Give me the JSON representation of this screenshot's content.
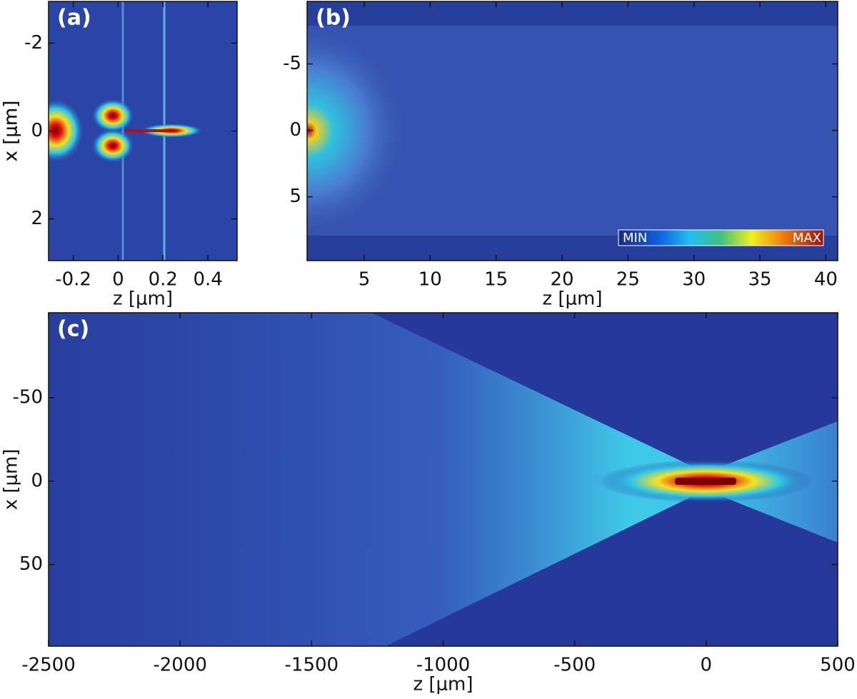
{
  "chart_data": [
    {
      "type": "heatmap",
      "label": "(a)",
      "xlabel": "z [μm]",
      "ylabel": "x [μm]",
      "xlim": [
        -0.31,
        0.53
      ],
      "xticks": [
        -0.2,
        0,
        0.2,
        0.4
      ],
      "ylim": [
        2.95,
        -2.95
      ],
      "yticks": [
        -2,
        0,
        2
      ]
    },
    {
      "type": "heatmap",
      "label": "(b)",
      "xlabel": "z [μm]",
      "ylabel": "x [μm]",
      "xlim": [
        0.67,
        40.9
      ],
      "xticks": [
        5,
        10,
        15,
        20,
        25,
        30,
        35,
        40
      ],
      "ylim": [
        9.8,
        -9.7
      ],
      "yticks": [
        -5,
        0,
        5
      ],
      "colorbar_labels": [
        "MIN",
        "MAX"
      ]
    },
    {
      "type": "heatmap",
      "label": "(c)",
      "xlabel": "z [μm]",
      "ylabel": "x [μm]",
      "xlim": [
        -2500,
        500
      ],
      "xticks": [
        -2500,
        -2000,
        -1500,
        -1000,
        -500,
        0,
        500
      ],
      "ylim": [
        99,
        -101
      ],
      "yticks": [
        -50,
        0,
        50
      ]
    }
  ]
}
